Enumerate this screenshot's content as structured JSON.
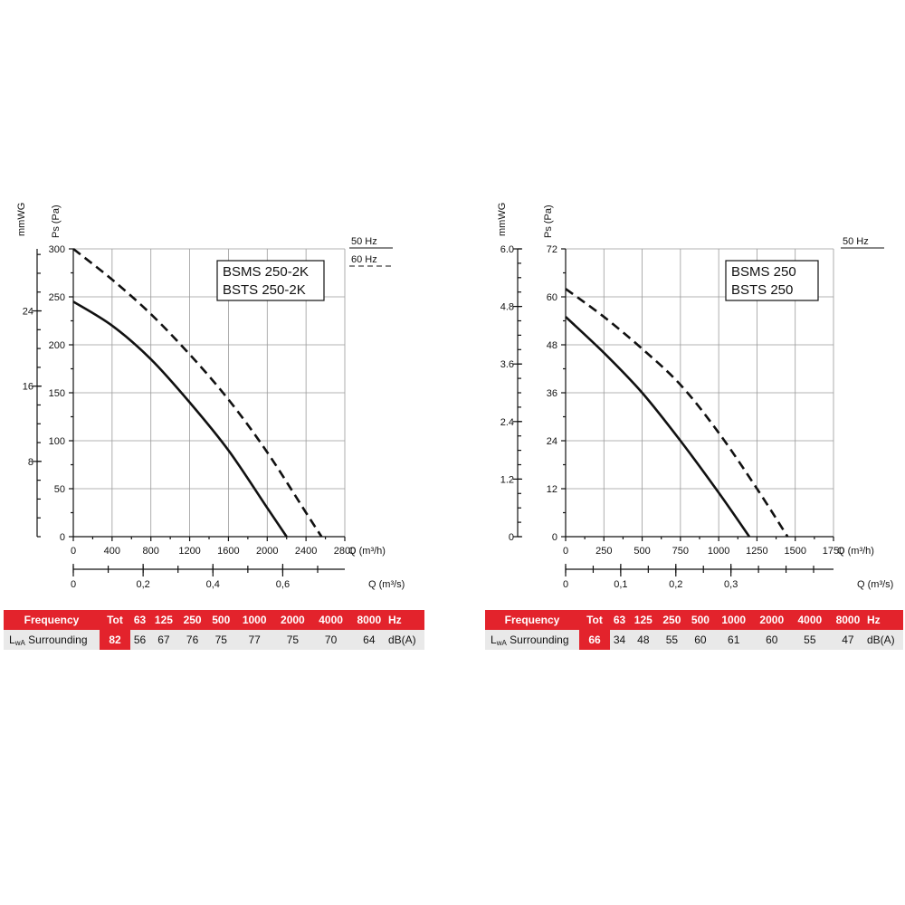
{
  "chart_data": [
    {
      "type": "line",
      "legend": [
        "BSMS 250-2K",
        "BSTS 250-2K"
      ],
      "frequency_keys": [
        "50 Hz",
        "60 Hz"
      ],
      "xlabel": "Q (m³/h)",
      "xlabel2": "Q (m³/s)",
      "ylabel": "Ps (Pa)",
      "ylabel2": "mmWG",
      "xlim": [
        0,
        2800
      ],
      "ylim": [
        0,
        300
      ],
      "xticks": [
        "0",
        "400",
        "800",
        "1200",
        "1600",
        "2000",
        "2400",
        "2800"
      ],
      "x2ticks": [
        "0",
        "0,2",
        "0,4",
        "0,6"
      ],
      "yticks": [
        "0",
        "50",
        "100",
        "150",
        "200",
        "250",
        "300"
      ],
      "y2ticks": [
        "8",
        "16",
        "24"
      ],
      "series": [
        {
          "name": "50 Hz",
          "x": [
            0,
            400,
            800,
            1200,
            1600,
            2000,
            2200
          ],
          "y": [
            245,
            220,
            185,
            140,
            90,
            30,
            0
          ]
        },
        {
          "name": "60 Hz",
          "x": [
            0,
            400,
            800,
            1200,
            1600,
            2000,
            2400,
            2560
          ],
          "y": [
            300,
            268,
            232,
            190,
            143,
            88,
            25,
            0
          ]
        }
      ],
      "table": {
        "header": [
          "Frequency",
          "Tot",
          "63",
          "125",
          "250",
          "500",
          "1000",
          "2000",
          "4000",
          "8000",
          "Hz"
        ],
        "row_label_main": "L",
        "row_label_sub": "wA",
        "row_label_rest": " Surrounding",
        "tot": "82",
        "values": [
          "56",
          "67",
          "76",
          "75",
          "77",
          "75",
          "70",
          "64"
        ],
        "unit": "dB(A)"
      }
    },
    {
      "type": "line",
      "legend": [
        "BSMS 250",
        "BSTS 250"
      ],
      "frequency_keys": [
        "50 Hz"
      ],
      "xlabel": "Q (m³/h)",
      "xlabel2": "Q (m³/s)",
      "ylabel": "Ps (Pa)",
      "ylabel2": "mmWG",
      "xlim": [
        0,
        1750
      ],
      "ylim": [
        0,
        72
      ],
      "xticks": [
        "0",
        "250",
        "500",
        "750",
        "1000",
        "1250",
        "1500",
        "1750"
      ],
      "x2ticks": [
        "0",
        "0,1",
        "0,2",
        "0,3"
      ],
      "yticks": [
        "0",
        "12",
        "24",
        "36",
        "48",
        "60",
        "72"
      ],
      "y2ticks": [
        "0",
        "1.2",
        "2.4",
        "3.6",
        "4.8",
        "6.0"
      ],
      "series": [
        {
          "name": "solid",
          "x": [
            0,
            250,
            500,
            750,
            1000,
            1200
          ],
          "y": [
            55,
            46,
            36,
            24,
            11,
            0
          ]
        },
        {
          "name": "dashed",
          "x": [
            0,
            250,
            500,
            750,
            1000,
            1250,
            1450
          ],
          "y": [
            62,
            55,
            47,
            38,
            26,
            12,
            0
          ]
        }
      ],
      "table": {
        "header": [
          "Frequency",
          "Tot",
          "63",
          "125",
          "250",
          "500",
          "1000",
          "2000",
          "4000",
          "8000",
          "Hz"
        ],
        "row_label_main": "L",
        "row_label_sub": "wA",
        "row_label_rest": " Surrounding",
        "tot": "66",
        "values": [
          "34",
          "48",
          "55",
          "60",
          "61",
          "60",
          "55",
          "47"
        ],
        "unit": "dB(A)"
      }
    }
  ]
}
